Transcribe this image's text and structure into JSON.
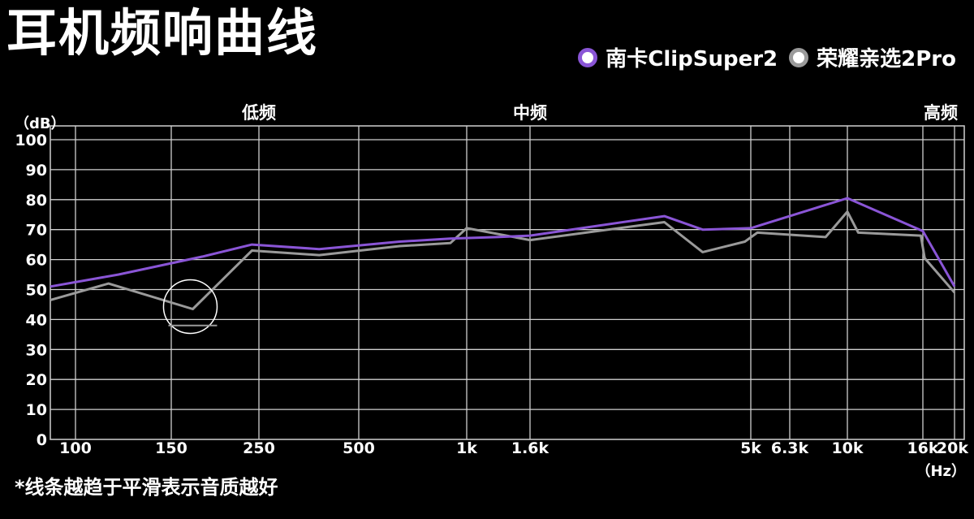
{
  "title": "耳机频响曲线",
  "footnote": "*线条越趋于平滑表示音质越好",
  "legend": [
    {
      "label": "南卡ClipSuper2",
      "color": "#8a55d6"
    },
    {
      "label": "荣耀亲选2Pro",
      "color": "#9a9a9a"
    }
  ],
  "chart_data": {
    "type": "line",
    "ylabel": "（dB）",
    "xunit": "（Hz）",
    "ylim": [
      0,
      100
    ],
    "y_ticks": [
      0,
      10,
      20,
      30,
      40,
      50,
      60,
      70,
      80,
      90,
      100
    ],
    "x_ticks": [
      "100",
      "150",
      "250",
      "500",
      "1k",
      "1.6k",
      "5k",
      "6.3k",
      "10k",
      "16k",
      "20k"
    ],
    "x_tick_values": [
      100,
      150,
      250,
      500,
      1000,
      1600,
      5000,
      6300,
      10000,
      16000,
      20000
    ],
    "x_range": [
      80,
      20000
    ],
    "regions": [
      {
        "label": "低频",
        "x": 250
      },
      {
        "label": "中频",
        "x": 1600
      },
      {
        "label": "高频",
        "x": 20000
      }
    ],
    "grid": true,
    "series": [
      {
        "name": "南卡ClipSuper2",
        "color": "#8a55d6",
        "x": [
          80,
          120,
          180,
          240,
          380,
          650,
          900,
          1250,
          1600,
          3200,
          3900,
          5000,
          10000,
          16000,
          20000
        ],
        "y": [
          51,
          55,
          61,
          65,
          63.5,
          66,
          67,
          67.5,
          68,
          74.5,
          70,
          70.5,
          80.5,
          69.5,
          51
        ]
      },
      {
        "name": "荣耀亲选2Pro",
        "color": "#9a9a9a",
        "x": [
          80,
          115,
          170,
          240,
          380,
          650,
          900,
          1000,
          1600,
          3200,
          3900,
          4850,
          5200,
          8400,
          10000,
          10700,
          15800,
          16200,
          20000
        ],
        "y": [
          46.5,
          52,
          43.5,
          63,
          61.5,
          64.5,
          65.5,
          70.5,
          66.5,
          72.5,
          62.5,
          66,
          69,
          67.5,
          76,
          69,
          68,
          60.5,
          49
        ]
      }
    ],
    "annotation": {
      "type": "circle",
      "x": 170,
      "y": 43.5
    }
  }
}
